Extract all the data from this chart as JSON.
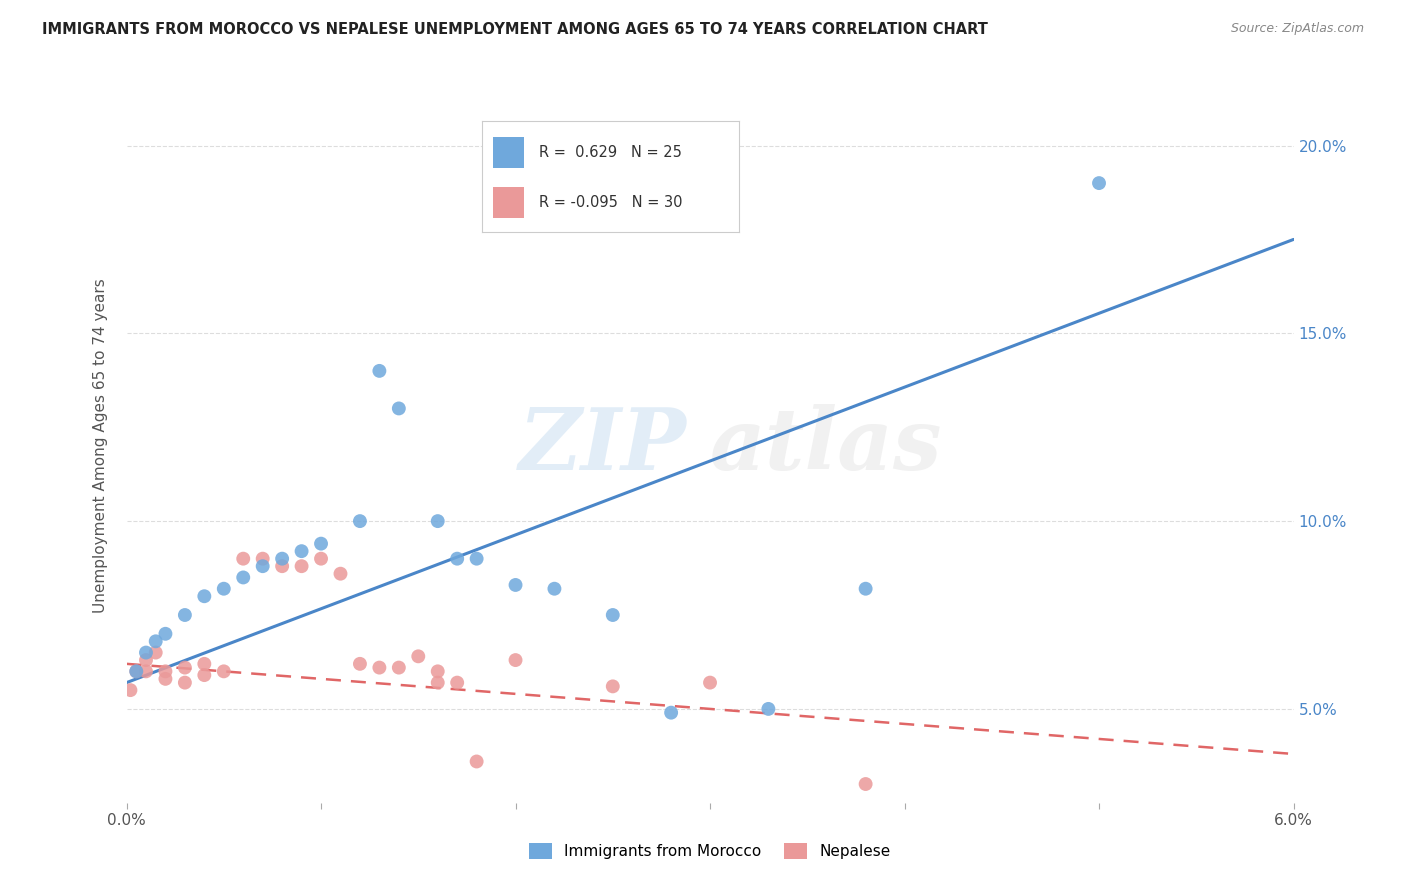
{
  "title": "IMMIGRANTS FROM MOROCCO VS NEPALESE UNEMPLOYMENT AMONG AGES 65 TO 74 YEARS CORRELATION CHART",
  "source": "Source: ZipAtlas.com",
  "ylabel": "Unemployment Among Ages 65 to 74 years",
  "xlim": [
    0.0,
    0.06
  ],
  "ylim": [
    0.025,
    0.215
  ],
  "yticks_right": [
    0.05,
    0.1,
    0.15,
    0.2
  ],
  "yticklabels_right": [
    "5.0%",
    "10.0%",
    "15.0%",
    "20.0%"
  ],
  "legend_r1": "R =  0.629",
  "legend_n1": "N = 25",
  "legend_r2": "R = -0.095",
  "legend_n2": "N = 30",
  "blue_color": "#6fa8dc",
  "pink_color": "#ea9999",
  "blue_line_color": "#4a86c8",
  "pink_line_color": "#e06666",
  "watermark_zip": "ZIP",
  "watermark_atlas": "atlas",
  "blue_scatter_x": [
    0.0005,
    0.001,
    0.0015,
    0.002,
    0.003,
    0.004,
    0.005,
    0.006,
    0.007,
    0.008,
    0.009,
    0.01,
    0.012,
    0.013,
    0.014,
    0.016,
    0.017,
    0.018,
    0.02,
    0.022,
    0.025,
    0.028,
    0.033,
    0.038,
    0.05
  ],
  "blue_scatter_y": [
    0.06,
    0.065,
    0.068,
    0.07,
    0.075,
    0.08,
    0.082,
    0.085,
    0.088,
    0.09,
    0.092,
    0.094,
    0.1,
    0.14,
    0.13,
    0.1,
    0.09,
    0.09,
    0.083,
    0.082,
    0.075,
    0.049,
    0.05,
    0.082,
    0.19
  ],
  "pink_scatter_x": [
    0.0002,
    0.0005,
    0.001,
    0.001,
    0.0015,
    0.002,
    0.002,
    0.003,
    0.003,
    0.004,
    0.004,
    0.005,
    0.006,
    0.007,
    0.008,
    0.009,
    0.01,
    0.011,
    0.012,
    0.013,
    0.014,
    0.015,
    0.016,
    0.016,
    0.017,
    0.018,
    0.02,
    0.025,
    0.03,
    0.038
  ],
  "pink_scatter_y": [
    0.055,
    0.06,
    0.06,
    0.063,
    0.065,
    0.058,
    0.06,
    0.057,
    0.061,
    0.062,
    0.059,
    0.06,
    0.09,
    0.09,
    0.088,
    0.088,
    0.09,
    0.086,
    0.062,
    0.061,
    0.061,
    0.064,
    0.057,
    0.06,
    0.057,
    0.036,
    0.063,
    0.056,
    0.057,
    0.03
  ],
  "blue_trend_x": [
    0.0,
    0.06
  ],
  "blue_trend_y": [
    0.057,
    0.175
  ],
  "pink_trend_x": [
    0.0,
    0.06
  ],
  "pink_trend_y": [
    0.062,
    0.038
  ],
  "grid_color": "#dddddd",
  "background_color": "#ffffff"
}
